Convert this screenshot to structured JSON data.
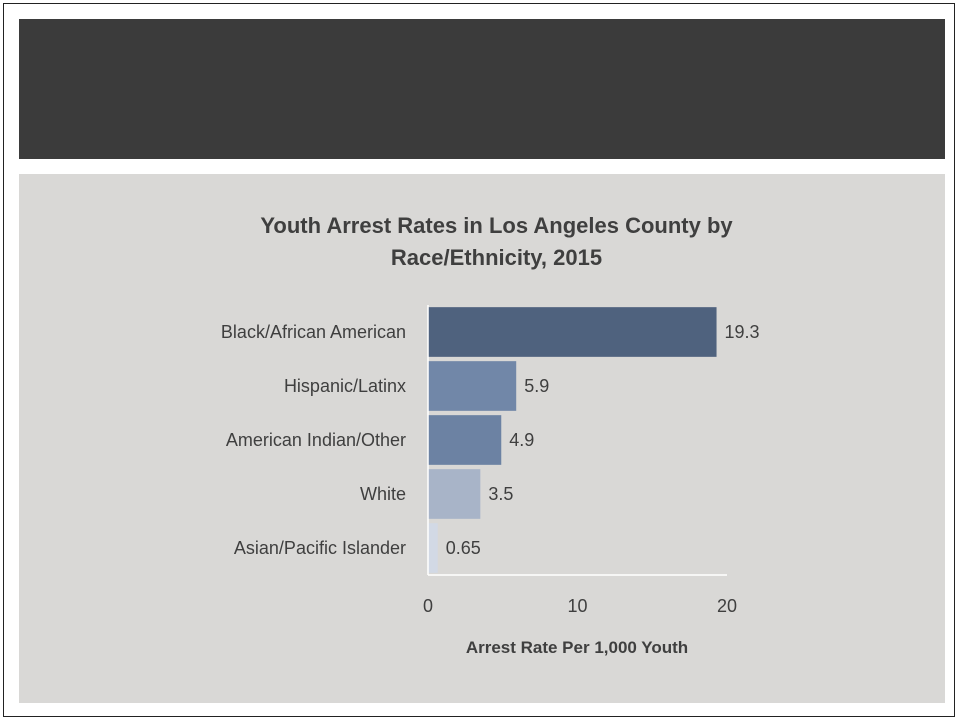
{
  "chart_data": {
    "type": "bar",
    "orientation": "horizontal",
    "title_line1": "Youth Arrest Rates in Los Angeles County by",
    "title_line2": "Race/Ethnicity, 2015",
    "xlabel": "Arrest Rate Per 1,000 Youth",
    "ylabel": "",
    "xlim": [
      0,
      20
    ],
    "ticks": [
      "0",
      "10",
      "20"
    ],
    "categories": [
      "Black/African American",
      "Hispanic/Latinx",
      "American Indian/Other",
      "White",
      "Asian/Pacific Islander"
    ],
    "values": [
      19.3,
      5.9,
      4.9,
      3.5,
      0.65
    ],
    "labels": [
      "19.3",
      "5.9",
      "4.9",
      "3.5",
      "0.65"
    ],
    "colors": [
      "#4f627e",
      "#7187a8",
      "#6c82a3",
      "#a8b4c8",
      "#d2d9e5"
    ],
    "grid": false,
    "legend": "none"
  }
}
